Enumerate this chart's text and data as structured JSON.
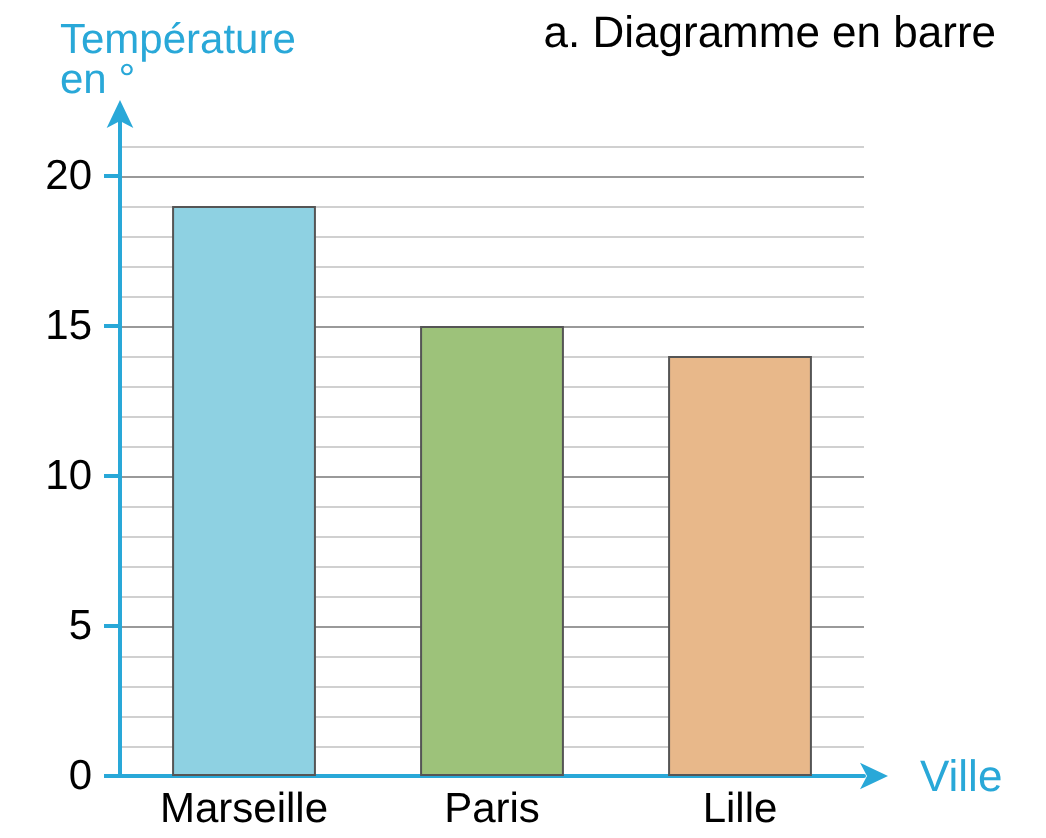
{
  "chart_data": {
    "type": "bar",
    "title": "a. Diagramme en barre",
    "xlabel": "Ville",
    "ylabel": "Température\nen °",
    "categories": [
      "Marseille",
      "Paris",
      "Lille"
    ],
    "values": [
      19,
      15,
      14
    ],
    "colors": [
      "#8ed1e2",
      "#9dc27a",
      "#e8b88a"
    ],
    "ylim": [
      0,
      22
    ],
    "yticks": [
      0,
      5,
      10,
      15,
      20
    ],
    "grid": true
  }
}
